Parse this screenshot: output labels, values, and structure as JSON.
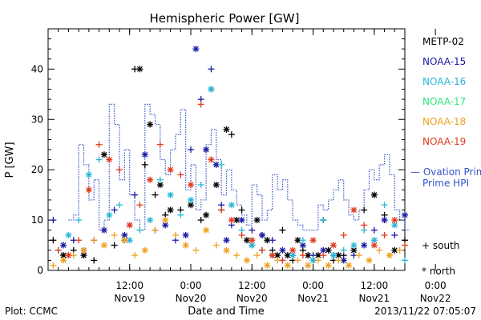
{
  "chart_data": {
    "type": "scatter",
    "title": "Hemispheric Power [GW]",
    "ylabel": "P [GW]",
    "xlabel": "Date and Time",
    "ylim": [
      0,
      48
    ],
    "yticks": [
      0,
      10,
      20,
      30,
      40
    ],
    "x_hours_range": [
      -4,
      66
    ],
    "xticks": [
      {
        "hour": 12,
        "time": "12:00",
        "day": "Nov19"
      },
      {
        "hour": 24,
        "time": "0:00",
        "day": "Nov20"
      },
      {
        "hour": 36,
        "time": "12:00",
        "day": "Nov20"
      },
      {
        "hour": 48,
        "time": "0:00",
        "day": "Nov21"
      },
      {
        "hour": 60,
        "time": "12:00",
        "day": "Nov21"
      },
      {
        "hour": 72,
        "time": "0:00",
        "day": "Nov22"
      }
    ],
    "legend": [
      {
        "name": "METP-02",
        "color": "#000000"
      },
      {
        "name": "NOAA-15",
        "color": "#1a1aa6"
      },
      {
        "name": "NOAA-16",
        "color": "#29b6d8"
      },
      {
        "name": "NOAA-17",
        "color": "#2ee87a"
      },
      {
        "name": "NOAA-18",
        "color": "#f0a020"
      },
      {
        "name": "NOAA-19",
        "color": "#e03a1e"
      }
    ],
    "ovation": {
      "name": "— Ovation Prime HPI",
      "color": "#3355cc",
      "hours": [
        0,
        1,
        2,
        3,
        4,
        5,
        6,
        7,
        8,
        9,
        10,
        11,
        12,
        13,
        14,
        15,
        16,
        17,
        18,
        19,
        20,
        21,
        22,
        23,
        24,
        25,
        26,
        27,
        28,
        29,
        30,
        31,
        32,
        33,
        34,
        35,
        36,
        37,
        38,
        39,
        40,
        41,
        42,
        43,
        44,
        45,
        46,
        47,
        48,
        49,
        50,
        51,
        52,
        53,
        54,
        55,
        56,
        57,
        58,
        59,
        60,
        61,
        62,
        63,
        64,
        65,
        66
      ],
      "values": [
        10,
        11,
        25,
        21,
        14,
        18,
        8,
        10,
        33,
        29,
        18,
        24,
        15,
        10,
        8,
        33,
        31,
        29,
        22,
        19,
        24,
        27,
        32,
        16,
        21,
        12,
        14,
        25,
        28,
        22,
        15,
        20,
        16,
        13,
        11,
        9,
        17,
        15,
        10,
        12,
        19,
        16,
        18,
        14,
        10,
        9,
        8,
        8,
        8,
        13,
        12,
        14,
        16,
        18,
        14,
        11,
        10,
        12,
        16,
        20,
        18,
        21,
        23,
        19,
        12,
        10,
        8
      ]
    },
    "symbols": [
      {
        "name": "+ south"
      },
      {
        "name": "* north"
      }
    ],
    "series": [
      {
        "name": "METP-02",
        "points": [
          [
            -3,
            6
          ],
          [
            -1,
            3
          ],
          [
            1,
            4
          ],
          [
            3,
            3
          ],
          [
            5,
            2
          ],
          [
            7,
            23
          ],
          [
            9,
            5
          ],
          [
            11,
            6
          ],
          [
            13,
            40
          ],
          [
            14,
            40
          ],
          [
            15,
            21
          ],
          [
            16,
            29
          ],
          [
            17,
            15
          ],
          [
            18,
            17
          ],
          [
            19,
            11
          ],
          [
            20,
            12
          ],
          [
            22,
            12
          ],
          [
            24,
            13
          ],
          [
            26,
            10
          ],
          [
            27,
            11
          ],
          [
            28,
            36
          ],
          [
            29,
            17
          ],
          [
            30,
            12
          ],
          [
            31,
            28
          ],
          [
            32,
            27
          ],
          [
            33,
            10
          ],
          [
            34,
            12
          ],
          [
            35,
            6
          ],
          [
            36,
            5
          ],
          [
            37,
            10
          ],
          [
            38,
            7
          ],
          [
            39,
            6
          ],
          [
            40,
            4
          ],
          [
            41,
            3
          ],
          [
            42,
            8
          ],
          [
            43,
            3
          ],
          [
            44,
            2
          ],
          [
            45,
            6
          ],
          [
            46,
            4
          ],
          [
            47,
            3
          ],
          [
            48,
            2
          ],
          [
            49,
            3
          ],
          [
            50,
            10
          ],
          [
            51,
            4
          ],
          [
            52,
            2
          ],
          [
            53,
            3
          ],
          [
            54,
            3
          ],
          [
            56,
            4
          ],
          [
            58,
            12
          ],
          [
            60,
            15
          ],
          [
            62,
            11
          ],
          [
            64,
            4
          ],
          [
            66,
            6
          ]
        ]
      },
      {
        "name": "NOAA-15",
        "points": [
          [
            -3,
            10
          ],
          [
            -1,
            5
          ],
          [
            1,
            6
          ],
          [
            3,
            4
          ],
          [
            5,
            6
          ],
          [
            7,
            8
          ],
          [
            9,
            12
          ],
          [
            11,
            7
          ],
          [
            13,
            15
          ],
          [
            15,
            23
          ],
          [
            17,
            8
          ],
          [
            19,
            9
          ],
          [
            21,
            6
          ],
          [
            23,
            7
          ],
          [
            24,
            24
          ],
          [
            25,
            44
          ],
          [
            26,
            34
          ],
          [
            27,
            24
          ],
          [
            28,
            40
          ],
          [
            29,
            21
          ],
          [
            30,
            13
          ],
          [
            31,
            6
          ],
          [
            32,
            9
          ],
          [
            34,
            10
          ],
          [
            36,
            8
          ],
          [
            38,
            7
          ],
          [
            40,
            6
          ],
          [
            42,
            4
          ],
          [
            44,
            3
          ],
          [
            46,
            5
          ],
          [
            48,
            3
          ],
          [
            50,
            4
          ],
          [
            52,
            3
          ],
          [
            54,
            2
          ],
          [
            56,
            3
          ],
          [
            58,
            5
          ],
          [
            60,
            8
          ],
          [
            62,
            10
          ],
          [
            64,
            7
          ],
          [
            66,
            11
          ]
        ]
      },
      {
        "name": "NOAA-16",
        "points": [
          [
            -2,
            4
          ],
          [
            0,
            7
          ],
          [
            2,
            10
          ],
          [
            4,
            19
          ],
          [
            6,
            22
          ],
          [
            8,
            11
          ],
          [
            10,
            13
          ],
          [
            12,
            6
          ],
          [
            14,
            8
          ],
          [
            16,
            10
          ],
          [
            18,
            18
          ],
          [
            20,
            15
          ],
          [
            22,
            11
          ],
          [
            24,
            14
          ],
          [
            26,
            17
          ],
          [
            28,
            36
          ],
          [
            30,
            21
          ],
          [
            32,
            13
          ],
          [
            34,
            8
          ],
          [
            36,
            5
          ],
          [
            38,
            4
          ],
          [
            40,
            3
          ],
          [
            42,
            2
          ],
          [
            44,
            3
          ],
          [
            46,
            6
          ],
          [
            48,
            2
          ],
          [
            50,
            10
          ],
          [
            52,
            3
          ],
          [
            54,
            4
          ],
          [
            56,
            5
          ],
          [
            58,
            8
          ],
          [
            60,
            6
          ],
          [
            62,
            13
          ],
          [
            64,
            9
          ],
          [
            66,
            2
          ]
        ]
      },
      {
        "name": "NOAA-18",
        "points": [
          [
            -3,
            1
          ],
          [
            -1,
            2
          ],
          [
            1,
            3
          ],
          [
            3,
            4
          ],
          [
            5,
            6
          ],
          [
            7,
            5
          ],
          [
            9,
            7
          ],
          [
            11,
            6
          ],
          [
            13,
            3
          ],
          [
            15,
            4
          ],
          [
            17,
            8
          ],
          [
            19,
            10
          ],
          [
            21,
            7
          ],
          [
            23,
            5
          ],
          [
            25,
            4
          ],
          [
            27,
            8
          ],
          [
            29,
            5
          ],
          [
            31,
            4
          ],
          [
            33,
            3
          ],
          [
            35,
            2
          ],
          [
            37,
            3
          ],
          [
            39,
            1
          ],
          [
            41,
            2
          ],
          [
            43,
            1
          ],
          [
            45,
            2
          ],
          [
            47,
            1
          ],
          [
            49,
            2
          ],
          [
            51,
            1
          ],
          [
            53,
            2
          ],
          [
            55,
            1
          ],
          [
            57,
            3
          ],
          [
            59,
            2
          ],
          [
            61,
            4
          ],
          [
            63,
            3
          ],
          [
            65,
            4
          ]
        ]
      },
      {
        "name": "NOAA-19",
        "points": [
          [
            -2,
            4
          ],
          [
            0,
            3
          ],
          [
            2,
            6
          ],
          [
            4,
            16
          ],
          [
            6,
            25
          ],
          [
            8,
            22
          ],
          [
            10,
            20
          ],
          [
            12,
            9
          ],
          [
            14,
            13
          ],
          [
            16,
            18
          ],
          [
            18,
            25
          ],
          [
            20,
            20
          ],
          [
            22,
            19
          ],
          [
            24,
            17
          ],
          [
            26,
            33
          ],
          [
            28,
            22
          ],
          [
            30,
            12
          ],
          [
            32,
            10
          ],
          [
            34,
            7
          ],
          [
            36,
            6
          ],
          [
            38,
            4
          ],
          [
            40,
            3
          ],
          [
            42,
            2
          ],
          [
            44,
            4
          ],
          [
            46,
            3
          ],
          [
            48,
            6
          ],
          [
            50,
            3
          ],
          [
            52,
            5
          ],
          [
            54,
            7
          ],
          [
            56,
            12
          ],
          [
            58,
            9
          ],
          [
            60,
            5
          ],
          [
            62,
            7
          ],
          [
            64,
            10
          ],
          [
            66,
            5
          ]
        ]
      }
    ]
  },
  "footer": {
    "plot": "Plot: CCMC",
    "timestamp": "2013/11/22 07:05:07"
  }
}
